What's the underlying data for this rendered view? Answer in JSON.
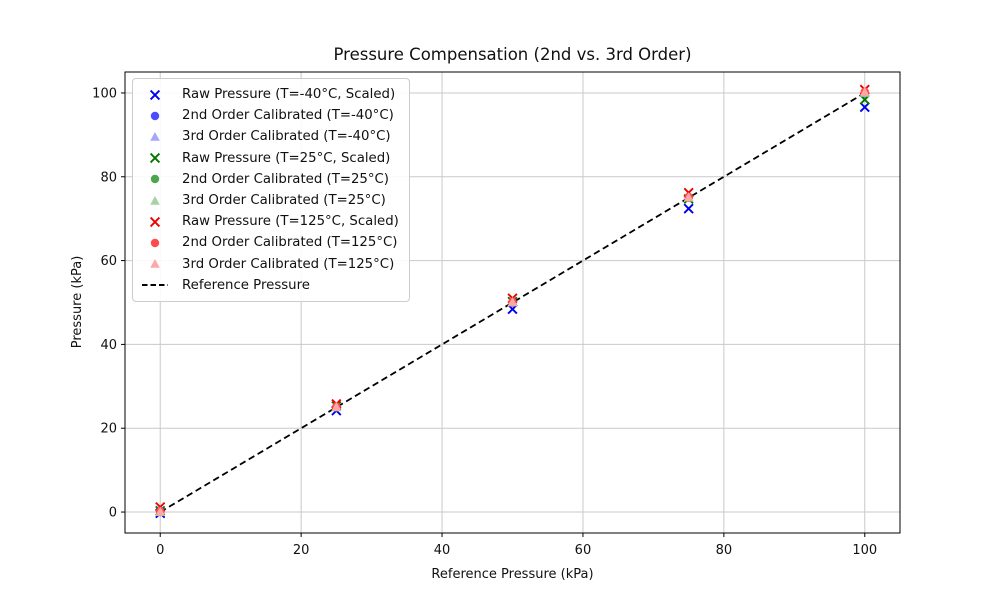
{
  "figure": {
    "background": "#ffffff"
  },
  "chart_data": {
    "type": "scatter",
    "title": "Pressure Compensation (2nd vs. 3rd Order)",
    "xlabel": "Reference Pressure (kPa)",
    "ylabel": "Pressure (kPa)",
    "xlim": [
      -5,
      105
    ],
    "ylim": [
      -5,
      105
    ],
    "xticks": [
      0,
      20,
      40,
      60,
      80,
      100
    ],
    "yticks": [
      0,
      20,
      40,
      60,
      80,
      100
    ],
    "grid": true,
    "grid_color": "#c9c9c9",
    "spine_color": "#000000",
    "legend_position": "upper-left",
    "x": [
      0,
      25,
      50,
      75,
      100
    ],
    "series": [
      {
        "name": "Raw Pressure (T=-40°C, Scaled)",
        "marker": "x",
        "color": "#0000ee",
        "values": [
          -0.3,
          24.2,
          48.4,
          72.4,
          96.6
        ]
      },
      {
        "name": "2nd Order Calibrated (T=-40°C)",
        "marker": "circle",
        "color": "#4d4dff",
        "values": [
          0.0,
          25.0,
          50.0,
          75.0,
          99.9
        ]
      },
      {
        "name": "3rd Order Calibrated (T=-40°C)",
        "marker": "triangle",
        "color": "#a6a6ff",
        "values": [
          0.0,
          25.0,
          50.0,
          75.0,
          100.0
        ]
      },
      {
        "name": "Raw Pressure (T=25°C, Scaled)",
        "marker": "x",
        "color": "#007700",
        "values": [
          0.3,
          25.3,
          50.2,
          74.7,
          98.4
        ]
      },
      {
        "name": "2nd Order Calibrated (T=25°C)",
        "marker": "circle",
        "color": "#4da64d",
        "values": [
          0.0,
          25.0,
          50.0,
          75.0,
          100.0
        ]
      },
      {
        "name": "3rd Order Calibrated (T=25°C)",
        "marker": "triangle",
        "color": "#a6d3a6",
        "values": [
          0.0,
          25.0,
          50.0,
          75.0,
          100.0
        ]
      },
      {
        "name": "Raw Pressure (T=125°C, Scaled)",
        "marker": "x",
        "color": "#ee0000",
        "values": [
          1.2,
          25.8,
          51.0,
          76.2,
          100.8
        ]
      },
      {
        "name": "2nd Order Calibrated (T=125°C)",
        "marker": "circle",
        "color": "#ff4d4d",
        "values": [
          0.2,
          25.2,
          50.2,
          75.2,
          100.3
        ]
      },
      {
        "name": "3rd Order Calibrated (T=125°C)",
        "marker": "triangle",
        "color": "#ffa6a6",
        "values": [
          0.1,
          25.1,
          50.1,
          75.1,
          100.2
        ]
      }
    ],
    "reference_line": {
      "name": "Reference Pressure",
      "style": "dashed",
      "color": "#000000",
      "x": [
        0,
        100
      ],
      "y": [
        0,
        100
      ]
    }
  }
}
